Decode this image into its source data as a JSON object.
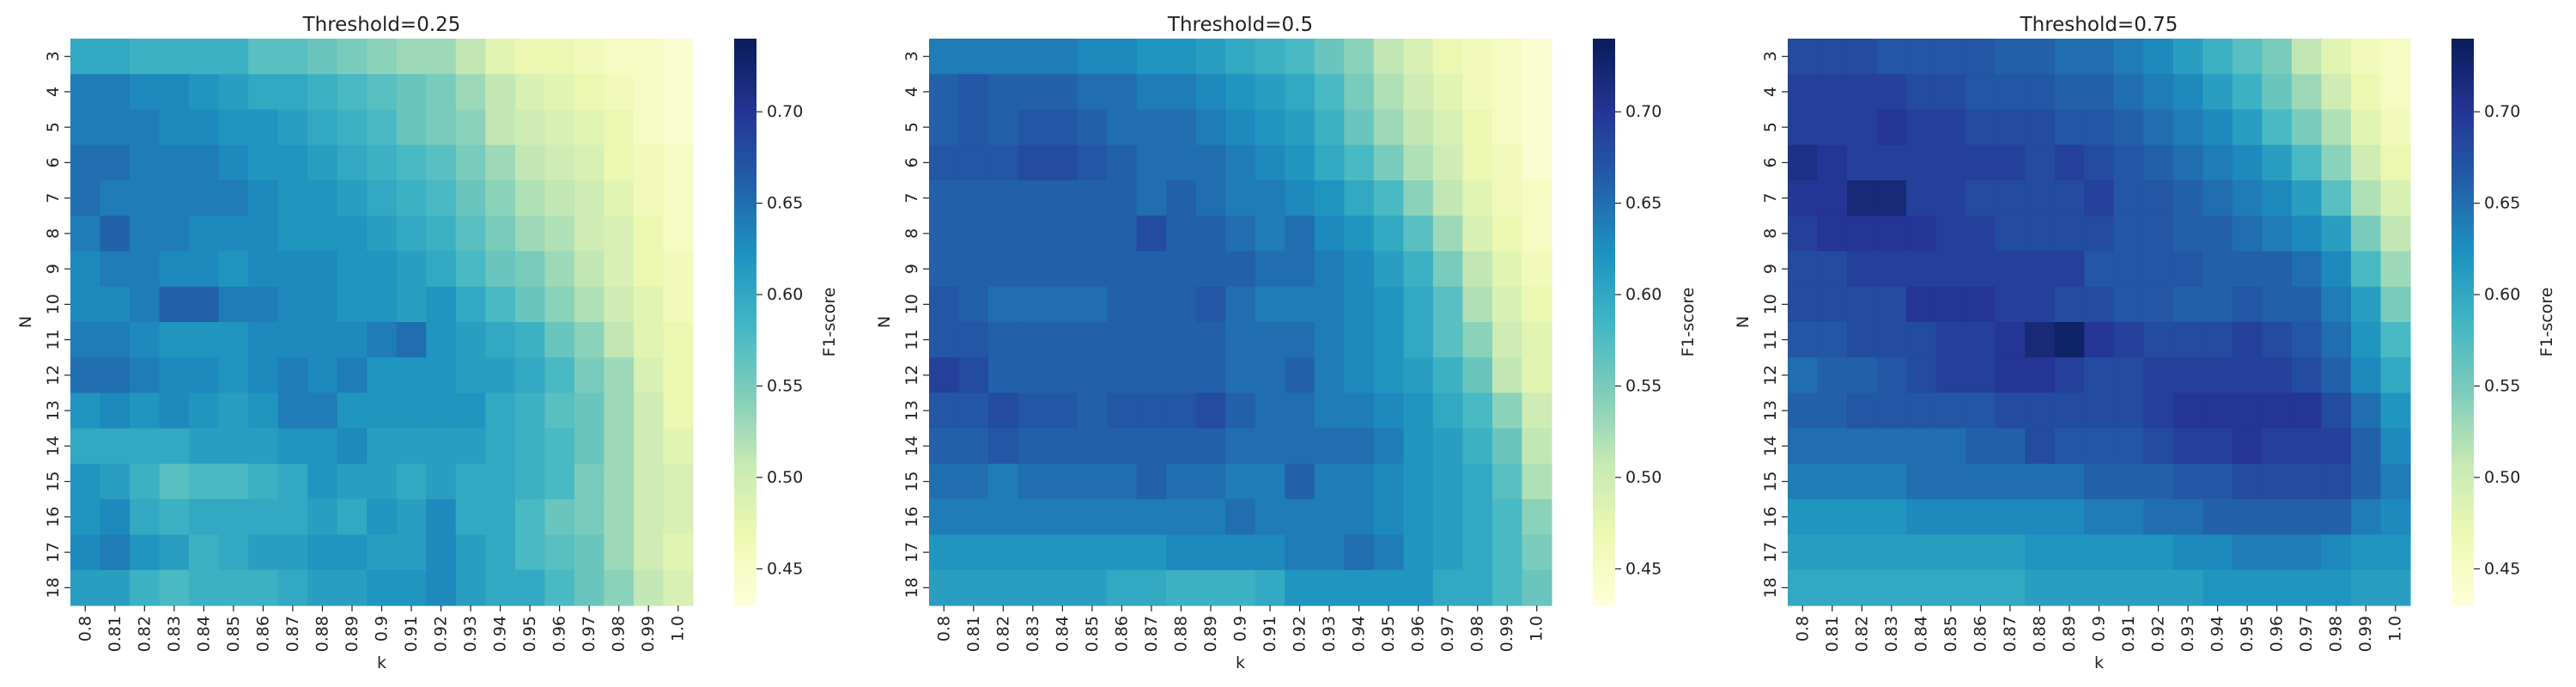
{
  "chart_data": [
    {
      "type": "heatmap",
      "title": "Threshold=0.25",
      "xlabel": "k",
      "ylabel": "N",
      "colorbar_label": "F1-score",
      "colormap": "YlGnBu",
      "vmin": 0.43,
      "vmax": 0.74,
      "cbar_ticks": [
        "0.45",
        "0.50",
        "0.55",
        "0.60",
        "0.65",
        "0.70"
      ],
      "x": [
        "0.8",
        "0.81",
        "0.82",
        "0.83",
        "0.84",
        "0.85",
        "0.86",
        "0.87",
        "0.88",
        "0.89",
        "0.9",
        "0.91",
        "0.92",
        "0.93",
        "0.94",
        "0.95",
        "0.96",
        "0.97",
        "0.98",
        "0.99",
        "1.0"
      ],
      "y": [
        "3",
        "4",
        "5",
        "6",
        "7",
        "8",
        "9",
        "10",
        "11",
        "12",
        "13",
        "14",
        "15",
        "16",
        "17",
        "18"
      ],
      "values": [
        [
          0.6,
          0.6,
          0.59,
          0.59,
          0.59,
          0.59,
          0.57,
          0.57,
          0.56,
          0.55,
          0.54,
          0.53,
          0.53,
          0.51,
          0.48,
          0.47,
          0.47,
          0.46,
          0.45,
          0.45,
          0.44
        ],
        [
          0.64,
          0.64,
          0.63,
          0.63,
          0.62,
          0.61,
          0.6,
          0.6,
          0.59,
          0.58,
          0.57,
          0.56,
          0.55,
          0.53,
          0.51,
          0.49,
          0.48,
          0.47,
          0.46,
          0.45,
          0.44
        ],
        [
          0.64,
          0.64,
          0.64,
          0.63,
          0.63,
          0.62,
          0.62,
          0.61,
          0.6,
          0.59,
          0.58,
          0.56,
          0.55,
          0.54,
          0.51,
          0.5,
          0.49,
          0.48,
          0.47,
          0.45,
          0.44
        ],
        [
          0.65,
          0.65,
          0.64,
          0.64,
          0.64,
          0.63,
          0.62,
          0.62,
          0.61,
          0.6,
          0.59,
          0.58,
          0.57,
          0.55,
          0.53,
          0.51,
          0.5,
          0.49,
          0.47,
          0.46,
          0.45
        ],
        [
          0.65,
          0.64,
          0.64,
          0.64,
          0.64,
          0.64,
          0.63,
          0.62,
          0.62,
          0.61,
          0.6,
          0.59,
          0.58,
          0.56,
          0.54,
          0.52,
          0.51,
          0.5,
          0.48,
          0.46,
          0.45
        ],
        [
          0.64,
          0.66,
          0.64,
          0.64,
          0.63,
          0.63,
          0.63,
          0.62,
          0.62,
          0.62,
          0.61,
          0.6,
          0.59,
          0.57,
          0.55,
          0.53,
          0.52,
          0.5,
          0.49,
          0.47,
          0.45
        ],
        [
          0.63,
          0.64,
          0.64,
          0.63,
          0.63,
          0.62,
          0.63,
          0.63,
          0.63,
          0.62,
          0.62,
          0.61,
          0.6,
          0.58,
          0.56,
          0.55,
          0.53,
          0.51,
          0.49,
          0.47,
          0.46
        ],
        [
          0.63,
          0.63,
          0.64,
          0.66,
          0.66,
          0.64,
          0.64,
          0.63,
          0.63,
          0.62,
          0.62,
          0.61,
          0.62,
          0.6,
          0.58,
          0.56,
          0.54,
          0.52,
          0.5,
          0.48,
          0.46
        ],
        [
          0.64,
          0.64,
          0.63,
          0.62,
          0.62,
          0.62,
          0.63,
          0.63,
          0.63,
          0.63,
          0.64,
          0.65,
          0.62,
          0.61,
          0.6,
          0.59,
          0.56,
          0.54,
          0.51,
          0.48,
          0.47
        ],
        [
          0.65,
          0.65,
          0.64,
          0.63,
          0.63,
          0.62,
          0.63,
          0.64,
          0.63,
          0.64,
          0.62,
          0.62,
          0.62,
          0.61,
          0.61,
          0.6,
          0.58,
          0.55,
          0.53,
          0.49,
          0.47
        ],
        [
          0.62,
          0.63,
          0.62,
          0.63,
          0.62,
          0.61,
          0.62,
          0.64,
          0.64,
          0.62,
          0.62,
          0.62,
          0.62,
          0.62,
          0.6,
          0.59,
          0.57,
          0.56,
          0.53,
          0.5,
          0.47
        ],
        [
          0.6,
          0.6,
          0.6,
          0.6,
          0.61,
          0.61,
          0.61,
          0.62,
          0.62,
          0.63,
          0.61,
          0.61,
          0.61,
          0.61,
          0.6,
          0.59,
          0.58,
          0.56,
          0.53,
          0.5,
          0.48
        ],
        [
          0.62,
          0.61,
          0.59,
          0.57,
          0.58,
          0.58,
          0.59,
          0.6,
          0.62,
          0.61,
          0.61,
          0.6,
          0.61,
          0.6,
          0.6,
          0.59,
          0.58,
          0.55,
          0.53,
          0.5,
          0.49
        ],
        [
          0.62,
          0.63,
          0.6,
          0.59,
          0.6,
          0.6,
          0.6,
          0.6,
          0.61,
          0.6,
          0.62,
          0.61,
          0.63,
          0.6,
          0.6,
          0.58,
          0.56,
          0.55,
          0.53,
          0.5,
          0.49
        ],
        [
          0.63,
          0.64,
          0.62,
          0.61,
          0.59,
          0.6,
          0.61,
          0.61,
          0.62,
          0.62,
          0.61,
          0.61,
          0.63,
          0.61,
          0.6,
          0.58,
          0.57,
          0.56,
          0.53,
          0.5,
          0.48
        ],
        [
          0.61,
          0.61,
          0.59,
          0.58,
          0.59,
          0.59,
          0.59,
          0.6,
          0.61,
          0.61,
          0.62,
          0.62,
          0.63,
          0.61,
          0.6,
          0.6,
          0.58,
          0.56,
          0.54,
          0.51,
          0.49
        ]
      ]
    },
    {
      "type": "heatmap",
      "title": "Threshold=0.5",
      "xlabel": "k",
      "ylabel": "N",
      "colorbar_label": "F1-score",
      "colormap": "YlGnBu",
      "vmin": 0.43,
      "vmax": 0.74,
      "cbar_ticks": [
        "0.45",
        "0.50",
        "0.55",
        "0.60",
        "0.65",
        "0.70"
      ],
      "x": [
        "0.8",
        "0.81",
        "0.82",
        "0.83",
        "0.84",
        "0.85",
        "0.86",
        "0.87",
        "0.88",
        "0.89",
        "0.9",
        "0.91",
        "0.92",
        "0.93",
        "0.94",
        "0.95",
        "0.96",
        "0.97",
        "0.98",
        "0.99",
        "1.0"
      ],
      "y": [
        "3",
        "4",
        "5",
        "6",
        "7",
        "8",
        "9",
        "10",
        "11",
        "12",
        "13",
        "14",
        "15",
        "16",
        "17",
        "18"
      ],
      "values": [
        [
          0.64,
          0.64,
          0.64,
          0.64,
          0.64,
          0.63,
          0.63,
          0.62,
          0.62,
          0.61,
          0.6,
          0.59,
          0.58,
          0.56,
          0.54,
          0.51,
          0.49,
          0.47,
          0.46,
          0.45,
          0.44
        ],
        [
          0.66,
          0.67,
          0.66,
          0.66,
          0.66,
          0.65,
          0.65,
          0.64,
          0.64,
          0.63,
          0.62,
          0.61,
          0.6,
          0.58,
          0.55,
          0.52,
          0.5,
          0.48,
          0.46,
          0.45,
          0.44
        ],
        [
          0.66,
          0.67,
          0.66,
          0.67,
          0.67,
          0.66,
          0.65,
          0.65,
          0.65,
          0.64,
          0.63,
          0.62,
          0.61,
          0.59,
          0.56,
          0.53,
          0.51,
          0.49,
          0.47,
          0.45,
          0.44
        ],
        [
          0.67,
          0.67,
          0.67,
          0.68,
          0.68,
          0.67,
          0.66,
          0.65,
          0.65,
          0.65,
          0.64,
          0.63,
          0.62,
          0.6,
          0.58,
          0.55,
          0.52,
          0.5,
          0.47,
          0.46,
          0.44
        ],
        [
          0.66,
          0.66,
          0.66,
          0.66,
          0.66,
          0.66,
          0.66,
          0.65,
          0.66,
          0.65,
          0.64,
          0.64,
          0.63,
          0.62,
          0.6,
          0.58,
          0.54,
          0.51,
          0.48,
          0.46,
          0.45
        ],
        [
          0.66,
          0.66,
          0.66,
          0.66,
          0.66,
          0.66,
          0.66,
          0.68,
          0.66,
          0.66,
          0.65,
          0.64,
          0.65,
          0.63,
          0.62,
          0.6,
          0.57,
          0.53,
          0.49,
          0.47,
          0.45
        ],
        [
          0.66,
          0.66,
          0.66,
          0.66,
          0.66,
          0.66,
          0.66,
          0.66,
          0.66,
          0.66,
          0.66,
          0.65,
          0.65,
          0.64,
          0.63,
          0.61,
          0.59,
          0.55,
          0.51,
          0.48,
          0.46
        ],
        [
          0.67,
          0.66,
          0.65,
          0.65,
          0.65,
          0.65,
          0.66,
          0.66,
          0.66,
          0.67,
          0.65,
          0.64,
          0.64,
          0.64,
          0.63,
          0.62,
          0.6,
          0.57,
          0.52,
          0.49,
          0.47
        ],
        [
          0.67,
          0.67,
          0.66,
          0.66,
          0.66,
          0.66,
          0.66,
          0.66,
          0.66,
          0.66,
          0.65,
          0.65,
          0.65,
          0.64,
          0.63,
          0.62,
          0.6,
          0.57,
          0.54,
          0.5,
          0.48
        ],
        [
          0.69,
          0.68,
          0.66,
          0.66,
          0.66,
          0.66,
          0.66,
          0.66,
          0.66,
          0.66,
          0.65,
          0.65,
          0.66,
          0.64,
          0.63,
          0.62,
          0.61,
          0.59,
          0.56,
          0.51,
          0.48
        ],
        [
          0.67,
          0.67,
          0.68,
          0.67,
          0.67,
          0.66,
          0.67,
          0.67,
          0.67,
          0.68,
          0.66,
          0.65,
          0.65,
          0.64,
          0.64,
          0.63,
          0.62,
          0.6,
          0.58,
          0.54,
          0.5
        ],
        [
          0.66,
          0.66,
          0.67,
          0.66,
          0.66,
          0.66,
          0.66,
          0.66,
          0.66,
          0.66,
          0.65,
          0.65,
          0.65,
          0.65,
          0.65,
          0.64,
          0.62,
          0.61,
          0.59,
          0.56,
          0.51
        ],
        [
          0.65,
          0.65,
          0.64,
          0.65,
          0.65,
          0.65,
          0.65,
          0.66,
          0.65,
          0.65,
          0.64,
          0.64,
          0.66,
          0.64,
          0.64,
          0.63,
          0.62,
          0.61,
          0.6,
          0.57,
          0.52
        ],
        [
          0.64,
          0.64,
          0.64,
          0.64,
          0.64,
          0.64,
          0.64,
          0.64,
          0.64,
          0.64,
          0.65,
          0.64,
          0.64,
          0.64,
          0.64,
          0.63,
          0.62,
          0.61,
          0.6,
          0.58,
          0.54
        ],
        [
          0.62,
          0.62,
          0.62,
          0.62,
          0.62,
          0.62,
          0.62,
          0.62,
          0.63,
          0.63,
          0.63,
          0.63,
          0.64,
          0.64,
          0.65,
          0.64,
          0.62,
          0.61,
          0.6,
          0.58,
          0.55
        ],
        [
          0.61,
          0.61,
          0.61,
          0.61,
          0.61,
          0.61,
          0.6,
          0.6,
          0.59,
          0.59,
          0.59,
          0.6,
          0.62,
          0.62,
          0.62,
          0.62,
          0.62,
          0.6,
          0.6,
          0.58,
          0.56
        ]
      ]
    },
    {
      "type": "heatmap",
      "title": "Threshold=0.75",
      "xlabel": "k",
      "ylabel": "N",
      "colorbar_label": "F1-score",
      "colormap": "YlGnBu",
      "vmin": 0.43,
      "vmax": 0.74,
      "cbar_ticks": [
        "0.45",
        "0.50",
        "0.55",
        "0.60",
        "0.65",
        "0.70"
      ],
      "x": [
        "0.8",
        "0.81",
        "0.82",
        "0.83",
        "0.84",
        "0.85",
        "0.86",
        "0.87",
        "0.88",
        "0.89",
        "0.9",
        "0.91",
        "0.92",
        "0.93",
        "0.94",
        "0.95",
        "0.96",
        "0.97",
        "0.98",
        "0.99",
        "1.0"
      ],
      "y": [
        "3",
        "4",
        "5",
        "6",
        "7",
        "8",
        "9",
        "10",
        "11",
        "12",
        "13",
        "14",
        "15",
        "16",
        "17",
        "18"
      ],
      "values": [
        [
          0.68,
          0.68,
          0.68,
          0.67,
          0.67,
          0.67,
          0.67,
          0.66,
          0.66,
          0.65,
          0.65,
          0.64,
          0.63,
          0.61,
          0.59,
          0.57,
          0.55,
          0.51,
          0.48,
          0.46,
          0.45
        ],
        [
          0.69,
          0.69,
          0.69,
          0.69,
          0.68,
          0.68,
          0.67,
          0.67,
          0.67,
          0.66,
          0.66,
          0.65,
          0.64,
          0.63,
          0.61,
          0.59,
          0.56,
          0.53,
          0.5,
          0.47,
          0.45
        ],
        [
          0.69,
          0.69,
          0.69,
          0.7,
          0.69,
          0.69,
          0.68,
          0.68,
          0.68,
          0.67,
          0.67,
          0.66,
          0.65,
          0.64,
          0.63,
          0.61,
          0.58,
          0.55,
          0.52,
          0.48,
          0.46
        ],
        [
          0.71,
          0.7,
          0.69,
          0.69,
          0.69,
          0.69,
          0.69,
          0.69,
          0.68,
          0.69,
          0.68,
          0.67,
          0.66,
          0.65,
          0.64,
          0.63,
          0.61,
          0.58,
          0.54,
          0.5,
          0.47
        ],
        [
          0.7,
          0.7,
          0.72,
          0.72,
          0.69,
          0.69,
          0.68,
          0.68,
          0.68,
          0.68,
          0.69,
          0.67,
          0.67,
          0.66,
          0.65,
          0.64,
          0.63,
          0.61,
          0.57,
          0.52,
          0.49
        ],
        [
          0.69,
          0.7,
          0.7,
          0.7,
          0.7,
          0.69,
          0.69,
          0.68,
          0.68,
          0.68,
          0.68,
          0.67,
          0.67,
          0.66,
          0.66,
          0.65,
          0.64,
          0.63,
          0.61,
          0.55,
          0.51
        ],
        [
          0.68,
          0.68,
          0.69,
          0.69,
          0.69,
          0.69,
          0.69,
          0.69,
          0.69,
          0.69,
          0.67,
          0.67,
          0.67,
          0.67,
          0.66,
          0.66,
          0.66,
          0.65,
          0.63,
          0.58,
          0.53
        ],
        [
          0.68,
          0.68,
          0.68,
          0.68,
          0.7,
          0.7,
          0.7,
          0.69,
          0.69,
          0.68,
          0.68,
          0.67,
          0.67,
          0.66,
          0.66,
          0.67,
          0.66,
          0.66,
          0.64,
          0.61,
          0.55
        ],
        [
          0.67,
          0.67,
          0.68,
          0.68,
          0.68,
          0.69,
          0.69,
          0.7,
          0.72,
          0.73,
          0.7,
          0.69,
          0.68,
          0.68,
          0.68,
          0.69,
          0.68,
          0.67,
          0.65,
          0.62,
          0.58
        ],
        [
          0.65,
          0.66,
          0.66,
          0.67,
          0.68,
          0.69,
          0.69,
          0.7,
          0.7,
          0.69,
          0.68,
          0.68,
          0.69,
          0.69,
          0.69,
          0.69,
          0.69,
          0.68,
          0.66,
          0.63,
          0.6
        ],
        [
          0.66,
          0.66,
          0.67,
          0.67,
          0.67,
          0.67,
          0.67,
          0.68,
          0.68,
          0.68,
          0.68,
          0.68,
          0.69,
          0.7,
          0.7,
          0.7,
          0.7,
          0.7,
          0.68,
          0.65,
          0.62
        ],
        [
          0.65,
          0.65,
          0.65,
          0.65,
          0.65,
          0.65,
          0.66,
          0.66,
          0.68,
          0.67,
          0.67,
          0.67,
          0.68,
          0.69,
          0.69,
          0.7,
          0.69,
          0.69,
          0.69,
          0.66,
          0.63
        ],
        [
          0.64,
          0.64,
          0.64,
          0.64,
          0.65,
          0.65,
          0.65,
          0.65,
          0.65,
          0.65,
          0.66,
          0.66,
          0.66,
          0.67,
          0.67,
          0.68,
          0.68,
          0.68,
          0.68,
          0.66,
          0.64
        ],
        [
          0.62,
          0.62,
          0.62,
          0.62,
          0.63,
          0.63,
          0.63,
          0.63,
          0.63,
          0.63,
          0.64,
          0.64,
          0.65,
          0.65,
          0.66,
          0.66,
          0.66,
          0.66,
          0.66,
          0.64,
          0.63
        ],
        [
          0.61,
          0.61,
          0.61,
          0.61,
          0.61,
          0.61,
          0.61,
          0.61,
          0.62,
          0.62,
          0.62,
          0.62,
          0.62,
          0.63,
          0.63,
          0.64,
          0.64,
          0.64,
          0.63,
          0.62,
          0.62
        ],
        [
          0.6,
          0.6,
          0.6,
          0.6,
          0.6,
          0.6,
          0.6,
          0.6,
          0.61,
          0.61,
          0.61,
          0.61,
          0.61,
          0.61,
          0.62,
          0.62,
          0.62,
          0.62,
          0.62,
          0.61,
          0.61
        ]
      ]
    }
  ]
}
